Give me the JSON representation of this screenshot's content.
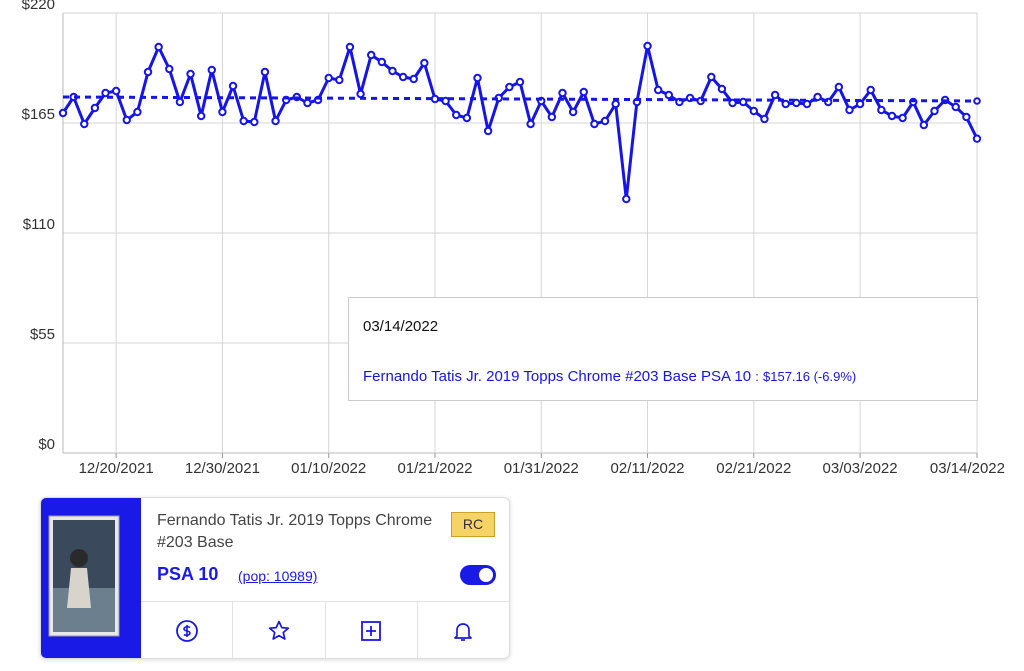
{
  "chart_data": {
    "type": "line",
    "categories": [
      null,
      null,
      null,
      null,
      null,
      "12/20/2021",
      null,
      null,
      null,
      null,
      null,
      null,
      null,
      null,
      null,
      "12/30/2021",
      null,
      null,
      null,
      null,
      null,
      null,
      null,
      null,
      null,
      "01/10/2022",
      null,
      null,
      null,
      null,
      null,
      null,
      null,
      null,
      null,
      "01/21/2022",
      null,
      null,
      null,
      null,
      null,
      null,
      null,
      null,
      null,
      "01/31/2022",
      null,
      null,
      null,
      null,
      null,
      null,
      null,
      null,
      null,
      "02/11/2022",
      null,
      null,
      null,
      null,
      null,
      null,
      null,
      null,
      null,
      "02/21/2022",
      null,
      null,
      null,
      null,
      null,
      null,
      null,
      null,
      null,
      "03/03/2022",
      null,
      null,
      null,
      null,
      null,
      null,
      null,
      null,
      null,
      null,
      "03/14/2022"
    ],
    "series": [
      {
        "name": "Fernando Tatis Jr. 2019 Topps Chrome #203 Base PSA 10",
        "color": "#1515e8",
        "values": [
          170,
          178,
          164.5,
          172.5,
          180,
          181,
          166.5,
          170.5,
          190.5,
          203,
          192,
          175.5,
          189.5,
          168.5,
          191.5,
          170.5,
          183.5,
          166,
          165.5,
          190.5,
          166,
          176.5,
          178,
          175,
          176.5,
          187.5,
          186.5,
          203,
          179.5,
          199,
          195.5,
          191,
          188,
          187,
          195,
          177,
          176,
          169,
          167.5,
          187.5,
          161,
          177.5,
          183,
          185.5,
          164.5,
          176,
          168,
          180,
          170.5,
          180.5,
          164.5,
          166,
          174.5,
          127,
          175.5,
          203.5,
          181.5,
          179,
          175.5,
          177.5,
          176,
          188,
          182,
          175,
          175.5,
          171,
          167,
          179,
          174.5,
          175,
          174.5,
          178,
          175.5,
          183,
          171.5,
          174.5,
          181.5,
          171.5,
          168.5,
          167.5,
          175.5,
          164,
          171,
          176.5,
          173,
          168,
          157.16
        ]
      }
    ],
    "trend": {
      "values": [
        178,
        176
      ],
      "dashed": true
    },
    "ylim": [
      0,
      220
    ],
    "yticks": [
      {
        "value": 0,
        "label": "$0"
      },
      {
        "value": 55,
        "label": "$55"
      },
      {
        "value": 110,
        "label": "$110"
      },
      {
        "value": 165,
        "label": "$165"
      },
      {
        "value": 220,
        "label": "$220"
      }
    ],
    "grid": true,
    "tooltip": {
      "date": "03/14/2022",
      "separator": ":",
      "value_label": "$157.16 (-6.9%)"
    }
  },
  "card": {
    "title": "Fernando Tatis Jr. 2019 Topps Chrome #203 Base",
    "badge": "RC",
    "grade": "PSA 10",
    "pop": "(pop: 10989)"
  }
}
